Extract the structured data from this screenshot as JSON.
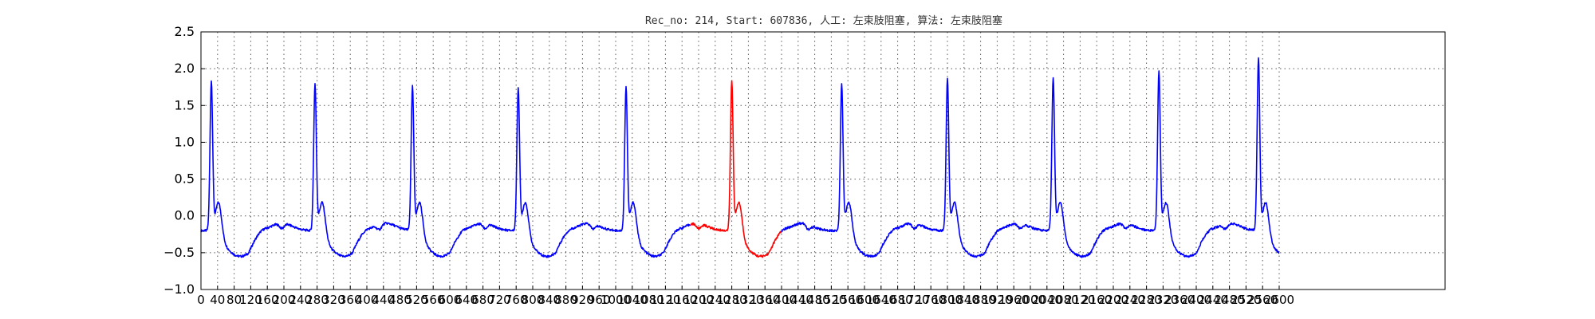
{
  "chart_data": {
    "type": "line",
    "title": "Rec_no: 214, Start: 607836, 人工: 左束肢阻塞, 算法: 左束肢阻塞",
    "xlabel": "",
    "ylabel": "",
    "xlim": [
      0,
      3000
    ],
    "ylim": [
      -1.0,
      2.5
    ],
    "grid": true,
    "yticks": [
      -1.0,
      -0.5,
      0.0,
      0.5,
      1.0,
      1.5,
      2.0,
      2.5
    ],
    "ytick_labels": [
      "−1.0",
      "−0.5",
      "0.0",
      "0.5",
      "1.0",
      "1.5",
      "2.0",
      "2.5"
    ],
    "xticks": [
      0,
      40,
      80,
      120,
      160,
      200,
      240,
      280,
      320,
      360,
      400,
      440,
      480,
      520,
      560,
      600,
      640,
      680,
      720,
      760,
      800,
      840,
      880,
      920,
      960,
      1000,
      1040,
      1080,
      1120,
      1160,
      1200,
      1240,
      1280,
      1320,
      1360,
      1400,
      1440,
      1480,
      1520,
      1560,
      1600,
      1640,
      1680,
      1720,
      1760,
      1800,
      1840,
      1880,
      1920,
      1960,
      2000,
      2040,
      2080,
      2120,
      2160,
      2200,
      2240,
      2280,
      2320,
      2360,
      2400,
      2440,
      2480,
      2520,
      2560,
      2600
    ],
    "beats": [
      {
        "center": 25,
        "peak": 1.82,
        "color": "#0000ff"
      },
      {
        "center": 275,
        "peak": 1.78,
        "color": "#0000ff"
      },
      {
        "center": 510,
        "peak": 1.74,
        "color": "#0000ff"
      },
      {
        "center": 765,
        "peak": 1.73,
        "color": "#0000ff"
      },
      {
        "center": 1025,
        "peak": 1.74,
        "color": "#0000ff"
      },
      {
        "center": 1280,
        "peak": 1.82,
        "color": "#ff0000"
      },
      {
        "center": 1545,
        "peak": 1.78,
        "color": "#0000ff"
      },
      {
        "center": 1800,
        "peak": 1.84,
        "color": "#0000ff"
      },
      {
        "center": 2055,
        "peak": 1.86,
        "color": "#0000ff"
      },
      {
        "center": 2310,
        "peak": 1.96,
        "color": "#0000ff"
      },
      {
        "center": 2550,
        "peak": 2.12,
        "color": "#0000ff"
      }
    ],
    "segments": [
      {
        "x": [
          0,
          1180
        ],
        "color": "#0000ff"
      },
      {
        "x": [
          1180,
          1400
        ],
        "color": "#ff0000"
      },
      {
        "x": [
          1400,
          2600
        ],
        "color": "#0000ff"
      }
    ],
    "baseline": -0.2,
    "trough": -0.55,
    "colors": {
      "normal": "#0000ff",
      "highlight": "#ff0000"
    }
  }
}
